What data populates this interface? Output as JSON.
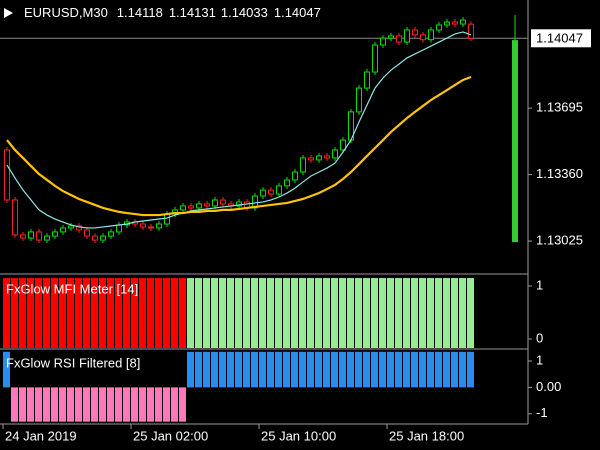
{
  "chart_data": [
    {
      "type": "candlestick",
      "title": "EURUSD,M30",
      "ylim": [
        1.12869,
        1.1424
      ],
      "yticks": [
        {
          "value": 1.13695,
          "label": "1.13695"
        },
        {
          "value": 1.1336,
          "label": "1.13360"
        },
        {
          "value": 1.13025,
          "label": "1.13025"
        }
      ],
      "price_line": 1.14047,
      "up_color": "#00e000",
      "down_color": "#ff2020",
      "price_line_color": "#8a8a8a",
      "xticks": [
        {
          "value": 0,
          "label": "24 Jan 2019"
        },
        {
          "value": 16,
          "label": "25 Jan 02:00"
        },
        {
          "value": 32,
          "label": "25 Jan 10:00"
        },
        {
          "value": 48,
          "label": "25 Jan 18:00"
        }
      ],
      "open": [
        1.13484,
        1.13232,
        1.13056,
        1.1304,
        1.13071,
        1.1303,
        1.1305,
        1.13071,
        1.13091,
        1.13101,
        1.13081,
        1.1305,
        1.1303,
        1.1305,
        1.13071,
        1.13106,
        1.13121,
        1.13111,
        1.13096,
        1.13091,
        1.13111,
        1.13161,
        1.13182,
        1.13202,
        1.13192,
        1.13212,
        1.13202,
        1.13232,
        1.13212,
        1.13202,
        1.13222,
        1.13192,
        1.13252,
        1.13282,
        1.13262,
        1.13303,
        1.13333,
        1.13373,
        1.13444,
        1.13434,
        1.13454,
        1.13444,
        1.13484,
        1.13534,
        1.13676,
        1.13796,
        1.13877,
        1.14013,
        1.14048,
        1.14059,
        1.14028,
        1.14089,
        1.14064,
        1.1404,
        1.14089,
        1.14114,
        1.14129,
        1.14119,
        1.14118
      ],
      "high": [
        1.13499,
        1.13247,
        1.13071,
        1.13086,
        1.13086,
        1.13065,
        1.13086,
        1.13106,
        1.13116,
        1.13116,
        1.13096,
        1.13065,
        1.13065,
        1.13086,
        1.13121,
        1.13136,
        1.13136,
        1.13126,
        1.13111,
        1.13126,
        1.13176,
        1.13197,
        1.13217,
        1.13217,
        1.13227,
        1.13227,
        1.13247,
        1.13247,
        1.13227,
        1.13237,
        1.13237,
        1.13267,
        1.13297,
        1.13297,
        1.13318,
        1.13348,
        1.13388,
        1.13459,
        1.13459,
        1.13469,
        1.13469,
        1.13499,
        1.13549,
        1.13691,
        1.13811,
        1.13892,
        1.14028,
        1.14063,
        1.14074,
        1.14074,
        1.14104,
        1.14104,
        1.14079,
        1.14104,
        1.14129,
        1.14144,
        1.14144,
        1.14154,
        1.14131
      ],
      "low": [
        1.13217,
        1.13041,
        1.13025,
        1.13025,
        1.13015,
        1.13015,
        1.13035,
        1.13056,
        1.13076,
        1.13066,
        1.13035,
        1.13015,
        1.13015,
        1.13035,
        1.13056,
        1.13091,
        1.13096,
        1.13081,
        1.13076,
        1.13076,
        1.13096,
        1.13146,
        1.13167,
        1.13177,
        1.13177,
        1.13187,
        1.13187,
        1.13197,
        1.13187,
        1.13187,
        1.13177,
        1.13177,
        1.13237,
        1.13247,
        1.13247,
        1.13288,
        1.13318,
        1.13358,
        1.13419,
        1.13419,
        1.13429,
        1.13429,
        1.13469,
        1.13519,
        1.13661,
        1.13781,
        1.13862,
        1.13998,
        1.14033,
        1.14013,
        1.14013,
        1.14049,
        1.14025,
        1.14025,
        1.14074,
        1.14099,
        1.14104,
        1.14104,
        1.14033
      ],
      "close": [
        1.13232,
        1.13056,
        1.1304,
        1.13071,
        1.1303,
        1.1305,
        1.13071,
        1.13091,
        1.13101,
        1.13081,
        1.1305,
        1.1303,
        1.1305,
        1.13071,
        1.13106,
        1.13121,
        1.13111,
        1.13096,
        1.13091,
        1.13111,
        1.13161,
        1.13182,
        1.13202,
        1.13192,
        1.13212,
        1.13202,
        1.13232,
        1.13212,
        1.13202,
        1.13222,
        1.13192,
        1.13252,
        1.13282,
        1.13262,
        1.13303,
        1.13333,
        1.13373,
        1.13444,
        1.13434,
        1.13454,
        1.13444,
        1.13484,
        1.13534,
        1.13676,
        1.13796,
        1.13877,
        1.14013,
        1.14048,
        1.14059,
        1.14028,
        1.14089,
        1.14064,
        1.1404,
        1.14089,
        1.14114,
        1.14129,
        1.14119,
        1.14139,
        1.14047
      ],
      "series": [
        {
          "color": "#8ee6e6",
          "values": [
            1.13408,
            1.13343,
            1.13282,
            1.13232,
            1.13182,
            1.13156,
            1.13136,
            1.13121,
            1.13106,
            1.13096,
            1.13091,
            1.13091,
            1.13096,
            1.13101,
            1.13106,
            1.13111,
            1.13121,
            1.13126,
            1.13131,
            1.13136,
            1.13141,
            1.13156,
            1.13166,
            1.13177,
            1.13182,
            1.13187,
            1.13192,
            1.13197,
            1.13202,
            1.13207,
            1.13212,
            1.13217,
            1.13222,
            1.13232,
            1.13247,
            1.13267,
            1.13292,
            1.13323,
            1.13353,
            1.13373,
            1.13393,
            1.13418,
            1.13474,
            1.13534,
            1.13625,
            1.13711,
            1.13796,
            1.13847,
            1.13887,
            1.13917,
            1.13948,
            1.13968,
            1.13988,
            1.14008,
            1.14028,
            1.14048,
            1.14069,
            1.14079,
            1.14064
          ]
        },
        {
          "color": "#ffc400",
          "values": [
            1.13534,
            1.13484,
            1.13444,
            1.13403,
            1.13363,
            1.13333,
            1.13303,
            1.13277,
            1.13257,
            1.13237,
            1.13222,
            1.13207,
            1.13192,
            1.13182,
            1.13172,
            1.13166,
            1.13161,
            1.13156,
            1.13156,
            1.13156,
            1.13161,
            1.13166,
            1.13166,
            1.13172,
            1.13172,
            1.13177,
            1.13177,
            1.13182,
            1.13182,
            1.13187,
            1.13192,
            1.13197,
            1.13202,
            1.13207,
            1.13212,
            1.13217,
            1.13227,
            1.13237,
            1.13252,
            1.13267,
            1.13287,
            1.13308,
            1.13338,
            1.13373,
            1.13413,
            1.13454,
            1.13494,
            1.13534,
            1.13575,
            1.1361,
            1.13645,
            1.13676,
            1.13706,
            1.13736,
            1.13761,
            1.13786,
            1.13812,
            1.13837,
            1.13852
          ]
        }
      ],
      "signal_bar": {
        "color": "#33cc33",
        "high": 1.14164,
        "top": 1.14038,
        "bottom": 1.1302
      }
    },
    {
      "type": "bar",
      "title": "FxGlow MFI Meter [14]",
      "ylim": [
        -0.17,
        1.17
      ],
      "yticks": [
        1,
        0
      ],
      "values": [
        1.15,
        1.15,
        1.15,
        1.15,
        1.15,
        1.15,
        1.15,
        1.15,
        1.15,
        1.15,
        1.15,
        1.15,
        1.15,
        1.15,
        1.15,
        1.15,
        1.15,
        1.15,
        1.15,
        1.15,
        1.15,
        1.15,
        1.15,
        1.15,
        1.15,
        1.15,
        1.15,
        1.15,
        1.15,
        1.15,
        1.15,
        1.15,
        1.15,
        1.15,
        1.15,
        1.15,
        1.15,
        1.15,
        1.15,
        1.15,
        1.15,
        1.15,
        1.15,
        1.15,
        1.15,
        1.15,
        1.15,
        1.15,
        1.15,
        1.15,
        1.15,
        1.15,
        1.15,
        1.15,
        1.15,
        1.15,
        1.15,
        1.15,
        1.15
      ],
      "colors": [
        "#ff0000",
        "#ff0000",
        "#ff0000",
        "#ff0000",
        "#ff0000",
        "#ff0000",
        "#ff0000",
        "#ff0000",
        "#ff0000",
        "#ff0000",
        "#ff0000",
        "#ff0000",
        "#ff0000",
        "#ff0000",
        "#ff0000",
        "#ff0000",
        "#ff0000",
        "#ff0000",
        "#ff0000",
        "#ff0000",
        "#ff0000",
        "#ff0000",
        "#ff0000",
        "#98ec98",
        "#98ec98",
        "#98ec98",
        "#98ec98",
        "#98ec98",
        "#98ec98",
        "#98ec98",
        "#98ec98",
        "#98ec98",
        "#98ec98",
        "#98ec98",
        "#98ec98",
        "#98ec98",
        "#98ec98",
        "#98ec98",
        "#98ec98",
        "#98ec98",
        "#98ec98",
        "#98ec98",
        "#98ec98",
        "#98ec98",
        "#98ec98",
        "#98ec98",
        "#98ec98",
        "#98ec98",
        "#98ec98",
        "#98ec98",
        "#98ec98",
        "#98ec98",
        "#98ec98",
        "#98ec98",
        "#98ec98",
        "#98ec98",
        "#98ec98",
        "#98ec98",
        "#98ec98"
      ]
    },
    {
      "type": "bar",
      "title": "FxGlow RSI Filtered [8]",
      "ylim": [
        -1.35,
        1.38
      ],
      "yticks": [
        1,
        {
          "value": 0,
          "label": "0.00"
        },
        -1
      ],
      "up_color": "#2a8cf0",
      "down_color": "#ff78b8",
      "values": [
        1.35,
        -1.3,
        -1.3,
        -1.3,
        -1.3,
        -1.3,
        -1.3,
        -1.3,
        -1.3,
        -1.3,
        -1.3,
        -1.3,
        -1.3,
        -1.3,
        -1.3,
        -1.3,
        -1.3,
        -1.3,
        -1.3,
        -1.3,
        -1.3,
        -1.3,
        -1.3,
        1.35,
        1.35,
        1.35,
        1.35,
        1.35,
        1.35,
        1.35,
        1.35,
        1.35,
        1.35,
        1.35,
        1.35,
        1.35,
        1.35,
        1.35,
        1.35,
        1.35,
        1.35,
        1.35,
        1.35,
        1.35,
        1.35,
        1.35,
        1.35,
        1.35,
        1.35,
        1.35,
        1.35,
        1.35,
        1.35,
        1.35,
        1.35,
        1.35,
        1.35,
        1.35,
        1.35
      ]
    }
  ]
}
